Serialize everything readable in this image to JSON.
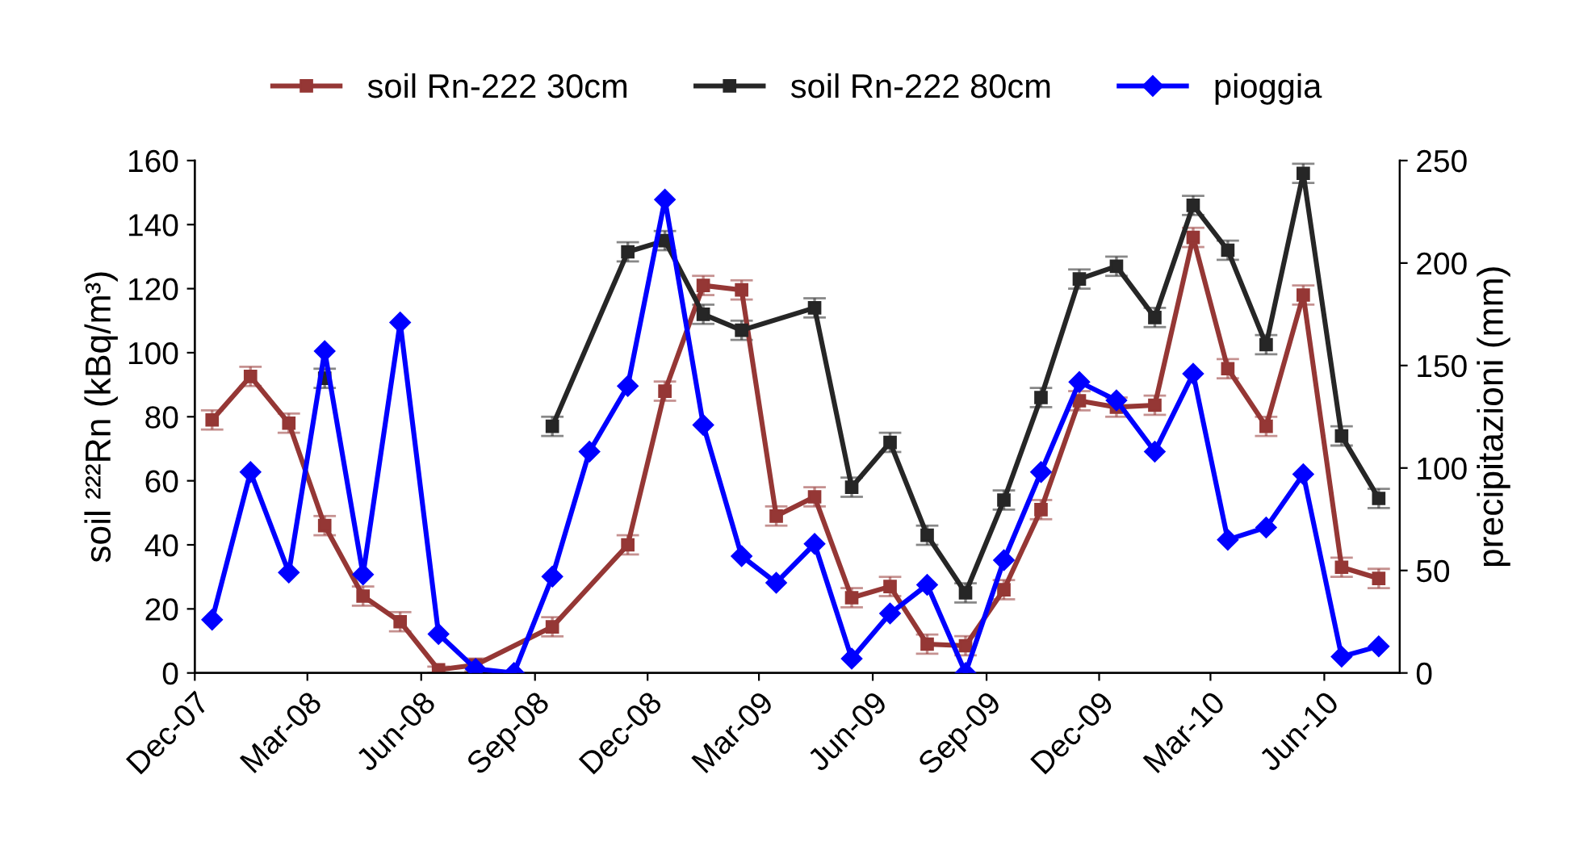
{
  "chart_data": {
    "type": "line",
    "ylabel": "soil ²²²Rn (kBq/m³)",
    "y2label": "precipitazioni (mm)",
    "x": [
      "2007-12-15",
      "2008-01-15",
      "2008-02-15",
      "2008-03-15",
      "2008-04-15",
      "2008-05-15",
      "2008-06-15",
      "2008-07-15",
      "2008-08-15",
      "2008-09-15",
      "2008-10-15",
      "2008-11-15",
      "2008-12-15",
      "2009-01-15",
      "2009-02-15",
      "2009-03-15",
      "2009-04-15",
      "2009-05-15",
      "2009-06-15",
      "2009-07-15",
      "2009-08-15",
      "2009-09-15",
      "2009-10-15",
      "2009-11-15",
      "2009-12-15",
      "2010-01-15",
      "2010-02-15",
      "2010-03-15",
      "2010-04-15",
      "2010-05-15",
      "2010-06-15",
      "2010-07-15"
    ],
    "xlim": [
      "2007-12-01",
      "2010-08-01"
    ],
    "xticks": [
      {
        "value": "2007-12-01",
        "label": "Dec-07"
      },
      {
        "value": "2008-03-01",
        "label": "Mar-08"
      },
      {
        "value": "2008-06-01",
        "label": "Jun-08"
      },
      {
        "value": "2008-09-01",
        "label": "Sep-08"
      },
      {
        "value": "2008-12-01",
        "label": "Dec-08"
      },
      {
        "value": "2009-03-01",
        "label": "Mar-09"
      },
      {
        "value": "2009-06-01",
        "label": "Jun-09"
      },
      {
        "value": "2009-09-01",
        "label": "Sep-09"
      },
      {
        "value": "2009-12-01",
        "label": "Dec-09"
      },
      {
        "value": "2010-03-01",
        "label": "Mar-10"
      },
      {
        "value": "2010-06-01",
        "label": "Jun-10"
      }
    ],
    "ylim": [
      0,
      160
    ],
    "yticks": [
      0,
      20,
      40,
      60,
      80,
      100,
      120,
      140,
      160
    ],
    "y2lim": [
      0,
      250
    ],
    "y2ticks": [
      0,
      50,
      100,
      150,
      200,
      250
    ],
    "legend": "top",
    "grid": false,
    "series": [
      {
        "name": "soil Rn-222 30cm",
        "color": "#953735",
        "marker": "square",
        "x": [
          "2007-12-15",
          "2008-01-15",
          "2008-02-15",
          "2008-03-15",
          "2008-04-15",
          "2008-05-15",
          "2008-06-15",
          "2008-07-15",
          "2008-09-15",
          "2008-11-15",
          "2008-12-15",
          "2009-01-15",
          "2009-02-15",
          "2009-03-15",
          "2009-04-15",
          "2009-05-15",
          "2009-06-15",
          "2009-07-15",
          "2009-08-15",
          "2009-09-15",
          "2009-10-15",
          "2009-11-15",
          "2009-12-15",
          "2010-01-15",
          "2010-02-15",
          "2010-03-15",
          "2010-04-15",
          "2010-05-15",
          "2010-06-15",
          "2010-07-15"
        ],
        "values": [
          79,
          92.6,
          78,
          46,
          24,
          16,
          1,
          2.5,
          14.4,
          40,
          88,
          121,
          119.6,
          49,
          55,
          23.5,
          27,
          9,
          8.5,
          26,
          51,
          85,
          83,
          83.6,
          136,
          95,
          77,
          118,
          33,
          29.5
        ],
        "errors": [
          3,
          3,
          3,
          3,
          3,
          3,
          1,
          2,
          3,
          3,
          3,
          3,
          3,
          3,
          3,
          3,
          3,
          3,
          3,
          3,
          3,
          3,
          3,
          3,
          3,
          3,
          3,
          3,
          3,
          3
        ]
      },
      {
        "name": "soil Rn-222 80cm",
        "color": "#262626",
        "marker": "square",
        "x": [
          "2008-09-15",
          "2008-11-15",
          "2008-12-15",
          "2009-01-15",
          "2009-02-15",
          "2009-04-15",
          "2009-05-15",
          "2009-06-15",
          "2009-07-15",
          "2009-08-15",
          "2009-09-15",
          "2009-10-15",
          "2009-11-15",
          "2009-12-15",
          "2010-01-15",
          "2010-02-15",
          "2010-03-15",
          "2010-04-15",
          "2010-05-15",
          "2010-06-15",
          "2010-07-15"
        ],
        "values": [
          77,
          131.5,
          135,
          112,
          107,
          114,
          58,
          72,
          43,
          25,
          54,
          86,
          123,
          127,
          111,
          146,
          132,
          102.5,
          156,
          74,
          54.5
        ],
        "errors": [
          3,
          3,
          3,
          3,
          3,
          3,
          3,
          3,
          3,
          3,
          3,
          3,
          3,
          3,
          3,
          3,
          3,
          3,
          3,
          3,
          3
        ]
      },
      {
        "type": "scatter",
        "color": "#262626",
        "marker": "square",
        "x": [
          "2008-03-15"
        ],
        "values": [
          92
        ],
        "errors": [
          3
        ]
      },
      {
        "name": "pioggia",
        "color": "#0000ff",
        "marker": "diamond",
        "axis": "y2",
        "values": [
          26,
          98,
          49,
          157,
          48,
          171,
          19,
          2,
          0,
          47,
          108,
          140,
          231,
          121,
          57,
          44,
          63,
          7,
          29,
          43,
          0,
          55,
          98,
          142,
          133,
          108,
          146,
          65,
          71,
          97,
          8,
          13
        ]
      }
    ]
  }
}
